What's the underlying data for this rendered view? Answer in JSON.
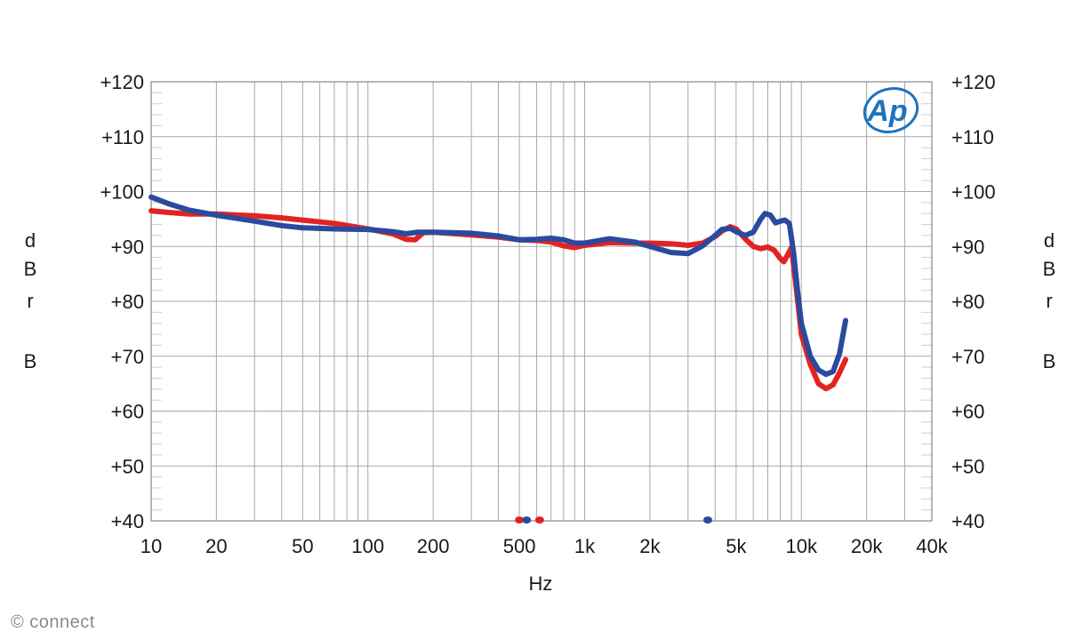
{
  "chart_data": {
    "type": "line",
    "title": "",
    "xlabel": "Hz",
    "ylabel": "dBrB",
    "x_scale": "log",
    "xlim": [
      10,
      40000
    ],
    "ylim": [
      40,
      120
    ],
    "grid": true,
    "y_ticks": [
      "+40",
      "+50",
      "+60",
      "+70",
      "+80",
      "+90",
      "+100",
      "+110",
      "+120"
    ],
    "y_tick_values": [
      40,
      50,
      60,
      70,
      80,
      90,
      100,
      110,
      120
    ],
    "x_ticks": [
      "10",
      "20",
      "50",
      "100",
      "200",
      "500",
      "1k",
      "2k",
      "5k",
      "10k",
      "20k",
      "40k"
    ],
    "x_tick_values": [
      10,
      20,
      50,
      100,
      200,
      500,
      1000,
      2000,
      5000,
      10000,
      20000,
      40000
    ],
    "series": [
      {
        "color": "#e32322",
        "x": [
          10,
          12,
          15,
          20,
          30,
          40,
          50,
          70,
          100,
          130,
          150,
          165,
          180,
          200,
          300,
          400,
          500,
          600,
          700,
          800,
          900,
          1000,
          1300,
          1700,
          2000,
          2500,
          3000,
          3500,
          4000,
          4300,
          4700,
          5000,
          5500,
          6000,
          6500,
          7000,
          7500,
          8000,
          8300,
          8600,
          9000,
          9500,
          10000,
          11000,
          12000,
          13000,
          14000,
          15000,
          16000
        ],
        "y": [
          96.5,
          96.2,
          95.9,
          95.9,
          95.6,
          95.2,
          94.8,
          94.2,
          93.2,
          92.3,
          91.3,
          91.2,
          92.5,
          92.6,
          92.1,
          91.7,
          91.2,
          91.1,
          90.8,
          90.1,
          89.8,
          90.2,
          90.7,
          90.6,
          90.6,
          90.5,
          90.2,
          90.6,
          91.8,
          92.8,
          93.6,
          93.2,
          91.4,
          90.0,
          89.6,
          89.9,
          89.3,
          87.8,
          87.2,
          88.3,
          89.8,
          82.0,
          74.0,
          68.5,
          65.0,
          64.1,
          64.8,
          67.0,
          69.4
        ]
      },
      {
        "color": "#2a4a9e",
        "x": [
          10,
          12,
          15,
          20,
          30,
          40,
          50,
          70,
          100,
          130,
          150,
          170,
          200,
          300,
          400,
          500,
          600,
          700,
          800,
          900,
          1000,
          1300,
          1700,
          2000,
          2500,
          3000,
          3500,
          4000,
          4300,
          4700,
          5000,
          5500,
          6000,
          6500,
          6800,
          7200,
          7600,
          8000,
          8400,
          8800,
          9200,
          9600,
          10000,
          11000,
          12000,
          13000,
          14000,
          15000,
          16000
        ],
        "y": [
          99.0,
          97.8,
          96.6,
          95.7,
          94.6,
          93.8,
          93.4,
          93.2,
          93.1,
          92.7,
          92.3,
          92.6,
          92.6,
          92.4,
          91.9,
          91.2,
          91.3,
          91.5,
          91.2,
          90.6,
          90.6,
          91.4,
          90.8,
          90.0,
          88.9,
          88.7,
          90.1,
          92.0,
          93.1,
          93.3,
          92.7,
          92.0,
          92.6,
          95.0,
          96.0,
          95.7,
          94.3,
          94.6,
          94.8,
          94.2,
          89.0,
          82.0,
          76.0,
          70.0,
          67.5,
          66.7,
          67.2,
          70.5,
          76.5
        ]
      }
    ],
    "markers": [
      {
        "x": 500,
        "color": "#e32322"
      },
      {
        "x": 540,
        "color": "#2a4a9e"
      },
      {
        "x": 620,
        "color": "#e32322"
      },
      {
        "x": 3700,
        "color": "#2a4a9e"
      }
    ]
  },
  "logo": {
    "text": "Ap"
  },
  "watermark": "© connect",
  "colors": {
    "grid": "#a8a8a8",
    "minor_grid": "#d0d0d0",
    "frame": "#888888",
    "text": "#1a1a1a",
    "logo": "#1e73be"
  }
}
